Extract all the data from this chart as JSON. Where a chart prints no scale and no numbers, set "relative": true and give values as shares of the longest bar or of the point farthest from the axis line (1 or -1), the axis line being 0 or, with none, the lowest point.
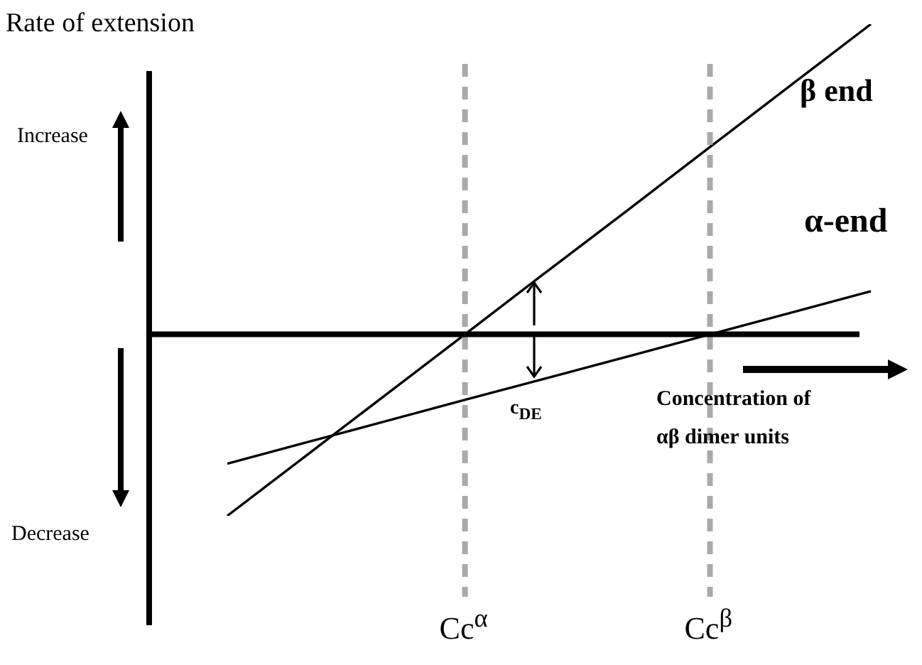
{
  "chart_data": {
    "type": "line",
    "relative": true,
    "ylabel": "Rate of extension",
    "xlabel": "Concentration of αβ dimer units",
    "marker": "none",
    "categories": [
      null,
      null,
      null,
      null,
      null,
      null,
      null,
      null,
      null
    ],
    "series": [
      {
        "name": "β end",
        "color": "#000000",
        "values": [
          -0.585,
          -0.387,
          -0.189,
          0.009,
          0.208,
          0.405,
          0.604,
          0.802,
          1
        ]
      },
      {
        "name": "α-end",
        "color": "#000000",
        "values": [
          -0.417,
          -0.347,
          -0.278,
          -0.208,
          -0.139,
          -0.07,
          0.0,
          0.069,
          0.139
        ]
      }
    ],
    "annotations": [
      "Increase",
      "Decrease",
      "c$_{DE}$",
      "Cc$^{α}$",
      "Cc$^{β}$"
    ]
  }
}
